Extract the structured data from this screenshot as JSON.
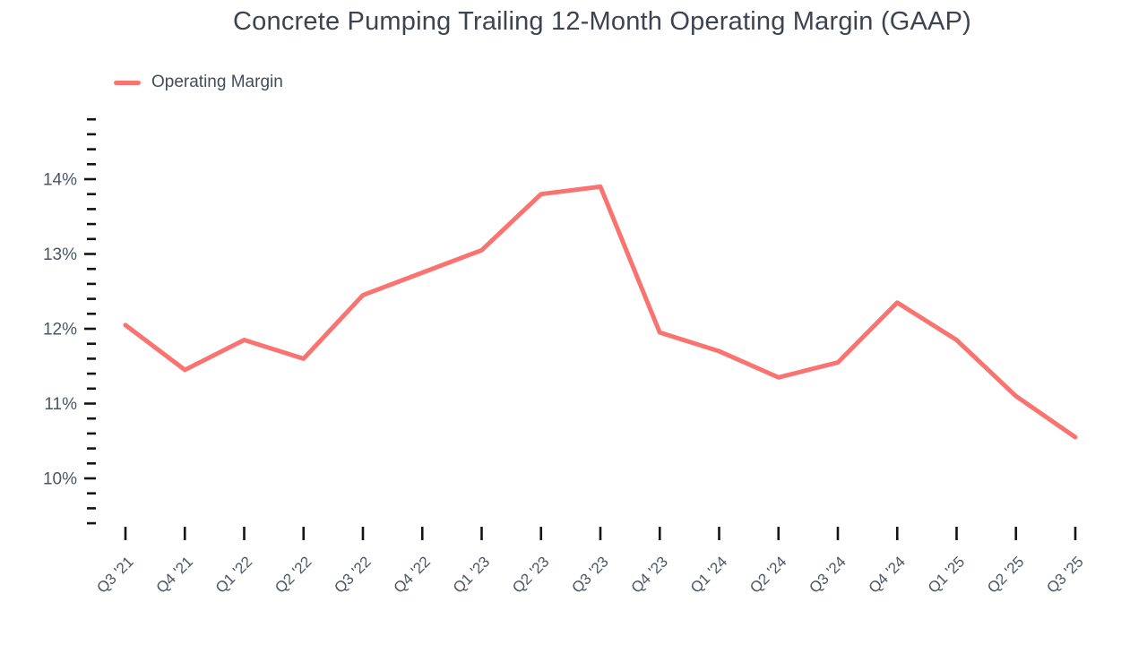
{
  "title": "Concrete Pumping Trailing 12-Month Operating Margin (GAAP)",
  "legend": {
    "series_label": "Operating Margin"
  },
  "colors": {
    "line": "#F97471",
    "tick": "#141414",
    "axis_label": "#4d5565",
    "title_text": "#3d4350"
  },
  "chart_data": {
    "type": "line",
    "title": "Concrete Pumping Trailing 12-Month Operating Margin (GAAP)",
    "categories": [
      "Q3 '21",
      "Q4 '21",
      "Q1 '22",
      "Q2 '22",
      "Q3 '22",
      "Q4 '22",
      "Q1 '23",
      "Q2 '23",
      "Q3 '23",
      "Q4 '23",
      "Q1 '24",
      "Q2 '24",
      "Q3 '24",
      "Q4 '24",
      "Q1 '25",
      "Q2 '25",
      "Q3 '25"
    ],
    "series": [
      {
        "name": "Operating Margin",
        "values": [
          12.05,
          11.45,
          11.85,
          11.6,
          12.45,
          12.75,
          13.05,
          13.8,
          13.9,
          11.95,
          11.7,
          11.35,
          11.55,
          12.35,
          11.85,
          11.1,
          10.55
        ]
      }
    ],
    "unit": "%",
    "ylim": [
      9.4,
      14.8
    ],
    "ytick_step": 0.2,
    "ytick_label_values": [
      10,
      11,
      12,
      13,
      14
    ],
    "ytick_labels": [
      "10%",
      "11%",
      "12%",
      "13%",
      "14%"
    ],
    "xlabel": "",
    "ylabel": "",
    "grid": false,
    "legend_position": "top-left"
  }
}
